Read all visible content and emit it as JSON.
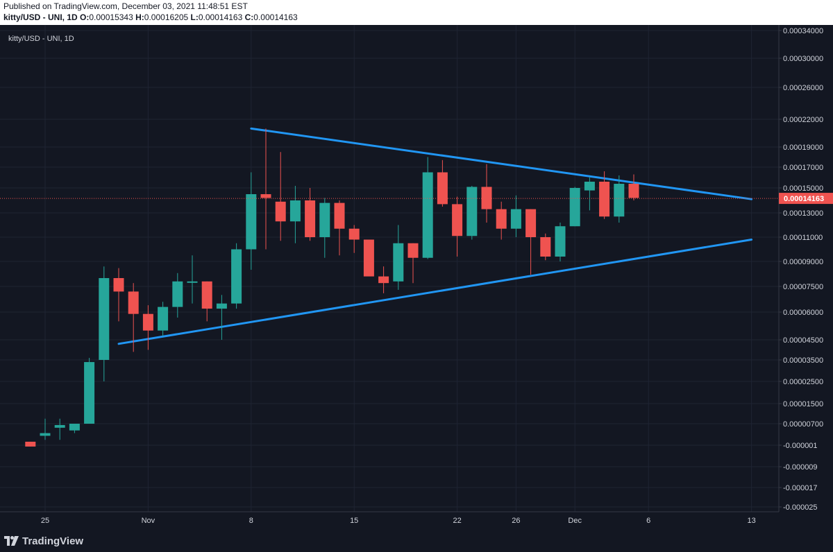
{
  "header": {
    "published": "Published on TradingView.com, December 03, 2021 11:48:51 EST",
    "symbol": "kitty/USD - UNI, 1D",
    "o_label": "O:",
    "o_value": "0.00015343",
    "h_label": "H:",
    "h_value": "0.00016205",
    "l_label": "L:",
    "l_value": "0.00014163",
    "c_label": "C:",
    "c_value": "0.00014163"
  },
  "chart_title": "kitty/USD - UNI, 1D",
  "footer": {
    "brand": "TradingView"
  },
  "colors": {
    "background": "#131722",
    "grid": "#1f2433",
    "up": "#26a69a",
    "down": "#ef5350",
    "trendline": "#2196f3",
    "text": "#d1d4dc"
  },
  "chart_data": {
    "type": "candlestick",
    "title": "kitty/USD - UNI, 1D",
    "price_scale": "logarithmic",
    "last_price": "0.00014163",
    "y_ticks": [
      "0.00034000",
      "0.00030000",
      "0.00026000",
      "0.00022000",
      "0.00019000",
      "0.00017000",
      "0.00015000",
      "0.00013000",
      "0.00011000",
      "0.00009000",
      "0.00007500",
      "0.00006000",
      "0.00004500",
      "0.00003500",
      "0.00002500",
      "0.00001500",
      "0.00000700",
      "-0.000001",
      "-0.000009",
      "-0.000017",
      "-0.000025"
    ],
    "x_ticks": [
      {
        "label": "25",
        "day": 0
      },
      {
        "label": "Nov",
        "day": 7
      },
      {
        "label": "8",
        "day": 14
      },
      {
        "label": "15",
        "day": 21
      },
      {
        "label": "22",
        "day": 28
      },
      {
        "label": "26",
        "day": 32
      },
      {
        "label": "Dec",
        "day": 36
      },
      {
        "label": "6",
        "day": 41
      },
      {
        "label": "13",
        "day": 48
      }
    ],
    "candles": [
      {
        "day": -1,
        "o": 3e-07,
        "h": 3e-07,
        "l": -1.5e-06,
        "c": -1.5e-06
      },
      {
        "day": 0,
        "o": 2.5e-06,
        "h": 9e-06,
        "l": 1e-06,
        "c": 3.5e-06
      },
      {
        "day": 1,
        "o": 5.5e-06,
        "h": 9e-06,
        "l": 1e-06,
        "c": 6.5e-06
      },
      {
        "day": 2,
        "o": 4.5e-06,
        "h": 7e-06,
        "l": 3.5e-06,
        "c": 7e-06
      },
      {
        "day": 3,
        "o": 7e-06,
        "h": 3.6e-05,
        "l": 7e-06,
        "c": 3.4e-05
      },
      {
        "day": 4,
        "o": 3.5e-05,
        "h": 8.7e-05,
        "l": 2.5e-05,
        "c": 8e-05
      },
      {
        "day": 5,
        "o": 8e-05,
        "h": 8.6e-05,
        "l": 5.5e-05,
        "c": 7.2e-05
      },
      {
        "day": 6,
        "o": 7.2e-05,
        "h": 7.7e-05,
        "l": 3.9e-05,
        "c": 5.9e-05
      },
      {
        "day": 7,
        "o": 5.9e-05,
        "h": 6.4e-05,
        "l": 4e-05,
        "c": 5e-05
      },
      {
        "day": 8,
        "o": 5e-05,
        "h": 6.6e-05,
        "l": 4.7e-05,
        "c": 6.3e-05
      },
      {
        "day": 9,
        "o": 6.3e-05,
        "h": 8.3e-05,
        "l": 5.7e-05,
        "c": 7.8e-05
      },
      {
        "day": 10,
        "o": 7.8e-05,
        "h": 9.5e-05,
        "l": 6.5e-05,
        "c": 7.8e-05
      },
      {
        "day": 11,
        "o": 7.8e-05,
        "h": 7.8e-05,
        "l": 5.5e-05,
        "c": 6.2e-05
      },
      {
        "day": 12,
        "o": 6.2e-05,
        "h": 7e-05,
        "l": 4.5e-05,
        "c": 6.5e-05
      },
      {
        "day": 13,
        "o": 6.5e-05,
        "h": 0.000105,
        "l": 6.2e-05,
        "c": 0.0001
      },
      {
        "day": 14,
        "o": 0.0001,
        "h": 0.000165,
        "l": 8.5e-05,
        "c": 0.000145
      },
      {
        "day": 15,
        "o": 0.000145,
        "h": 0.00021,
        "l": 0.0001,
        "c": 0.000142
      },
      {
        "day": 16,
        "o": 0.000139,
        "h": 0.000185,
        "l": 0.000107,
        "c": 0.000123
      },
      {
        "day": 17,
        "o": 0.000123,
        "h": 0.000152,
        "l": 0.000105,
        "c": 0.00014
      },
      {
        "day": 18,
        "o": 0.00014,
        "h": 0.00015,
        "l": 0.000107,
        "c": 0.00011
      },
      {
        "day": 19,
        "o": 0.00011,
        "h": 0.000142,
        "l": 9.3e-05,
        "c": 0.000138
      },
      {
        "day": 20,
        "o": 0.000138,
        "h": 0.00014,
        "l": 9.5e-05,
        "c": 0.000117
      },
      {
        "day": 21,
        "o": 0.000117,
        "h": 0.00012,
        "l": 9.7e-05,
        "c": 0.000108
      },
      {
        "day": 22,
        "o": 0.000108,
        "h": 0.000108,
        "l": 8.2e-05,
        "c": 8.1e-05
      },
      {
        "day": 23,
        "o": 8.1e-05,
        "h": 8.7e-05,
        "l": 7.1e-05,
        "c": 7.7e-05
      },
      {
        "day": 24,
        "o": 7.8e-05,
        "h": 0.00012,
        "l": 7.3e-05,
        "c": 0.000105
      },
      {
        "day": 25,
        "o": 0.000105,
        "h": 0.000105,
        "l": 7.7e-05,
        "c": 9.3e-05
      },
      {
        "day": 26,
        "o": 9.3e-05,
        "h": 0.00018,
        "l": 9.2e-05,
        "c": 0.000165
      },
      {
        "day": 27,
        "o": 0.000165,
        "h": 0.000177,
        "l": 0.000135,
        "c": 0.000137
      },
      {
        "day": 28,
        "o": 0.000137,
        "h": 0.000143,
        "l": 9.4e-05,
        "c": 0.000111
      },
      {
        "day": 29,
        "o": 0.000111,
        "h": 0.000152,
        "l": 0.000108,
        "c": 0.000151
      },
      {
        "day": 30,
        "o": 0.000151,
        "h": 0.000173,
        "l": 0.000122,
        "c": 0.000133
      },
      {
        "day": 31,
        "o": 0.000133,
        "h": 0.000139,
        "l": 0.000108,
        "c": 0.000117
      },
      {
        "day": 32,
        "o": 0.000117,
        "h": 0.000144,
        "l": 0.00011,
        "c": 0.000133
      },
      {
        "day": 33,
        "o": 0.000133,
        "h": 0.000133,
        "l": 8.2e-05,
        "c": 0.00011
      },
      {
        "day": 34,
        "o": 0.00011,
        "h": 0.000113,
        "l": 9.1e-05,
        "c": 9.4e-05
      },
      {
        "day": 35,
        "o": 9.4e-05,
        "h": 0.000122,
        "l": 9e-05,
        "c": 0.000119
      },
      {
        "day": 36,
        "o": 0.000119,
        "h": 0.000151,
        "l": 0.000119,
        "c": 0.00015
      },
      {
        "day": 37,
        "o": 0.000148,
        "h": 0.00016,
        "l": 0.000132,
        "c": 0.000156
      },
      {
        "day": 38,
        "o": 0.000156,
        "h": 0.000166,
        "l": 0.000125,
        "c": 0.000127
      },
      {
        "day": 39,
        "o": 0.000127,
        "h": 0.000162,
        "l": 0.000122,
        "c": 0.000154
      },
      {
        "day": 40,
        "o": 0.000154,
        "h": 0.000163,
        "l": 0.00014,
        "c": 0.000142
      }
    ],
    "trendlines": [
      {
        "name": "upper",
        "from": {
          "day": 14,
          "price": 0.00021
        },
        "to": {
          "day": 48,
          "price": 0.000141
        }
      },
      {
        "name": "lower",
        "from": {
          "day": 5,
          "price": 4.3e-05
        },
        "to": {
          "day": 48,
          "price": 0.000108
        }
      }
    ]
  }
}
